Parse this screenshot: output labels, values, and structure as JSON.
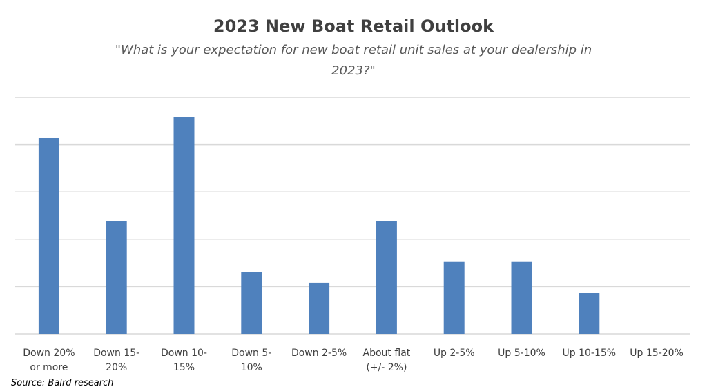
{
  "chart_data": {
    "type": "bar",
    "title": "2023 New Boat Retail Outlook",
    "subtitle_lines": [
      "\"What is your expectation for new boat retail unit sales at your dealership in",
      "2023?\""
    ],
    "categories": [
      [
        "Down 20%",
        "or more"
      ],
      [
        "Down 15-",
        "20%"
      ],
      [
        "Down 10-",
        "15%"
      ],
      [
        "Down 5-",
        "10%"
      ],
      [
        "Down 2-5%"
      ],
      [
        "About flat",
        "(+/- 2%)"
      ],
      [
        "Up 2-5%"
      ],
      [
        "Up 5-10%"
      ],
      [
        "Up 10-15%"
      ],
      [
        "Up 15-20%"
      ]
    ],
    "values": [
      20.7,
      11.9,
      22.9,
      6.5,
      5.4,
      11.9,
      7.6,
      7.6,
      4.3,
      0
    ],
    "ylim": [
      0,
      25
    ],
    "gridline_count": 5,
    "tick_labels_shown": false,
    "grid": true,
    "legend": "none",
    "bar_color": "#4f81bd",
    "xlabel": "",
    "ylabel": ""
  },
  "footer": {
    "source": "Source: Baird research"
  }
}
